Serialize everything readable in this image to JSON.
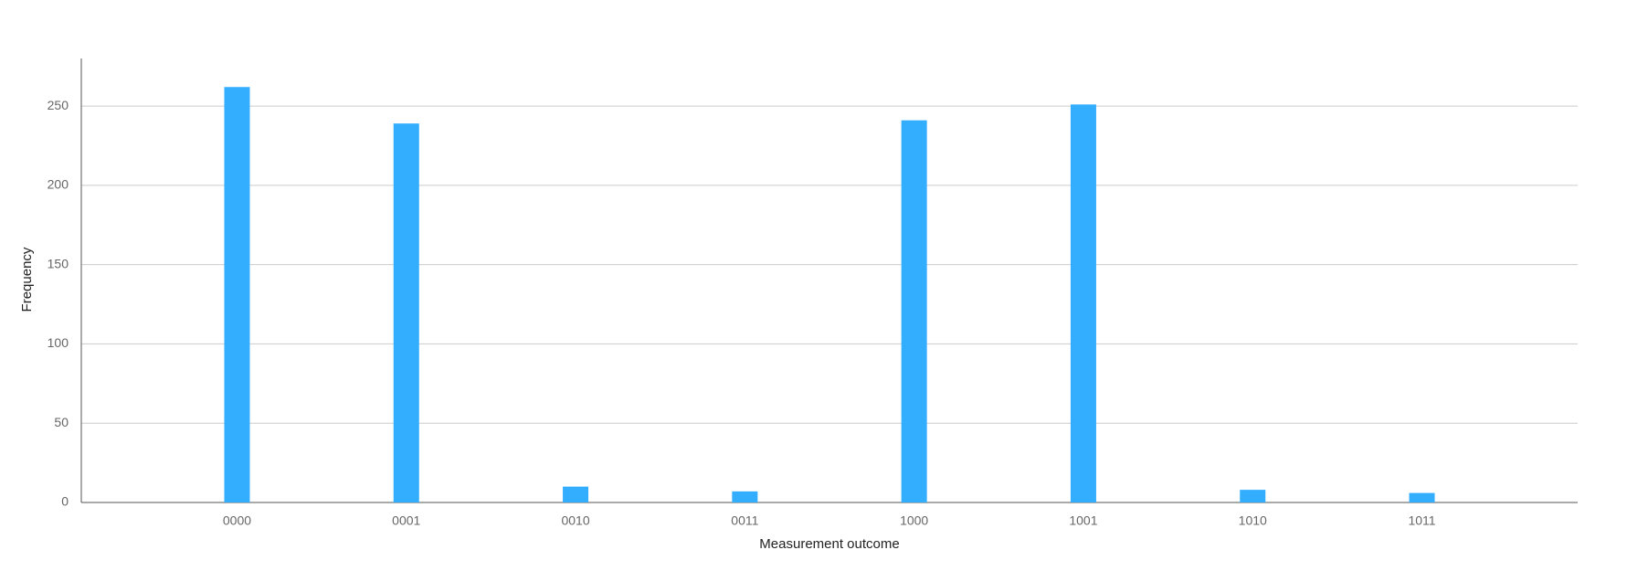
{
  "chart_data": {
    "type": "bar",
    "x_label": "Measurement outcome",
    "y_label": "Frequency",
    "categories": [
      "0000",
      "0001",
      "0010",
      "0011",
      "1000",
      "1001",
      "1010",
      "1011"
    ],
    "values": [
      262,
      239,
      10,
      7,
      241,
      251,
      8,
      6
    ],
    "color": "#33aeff",
    "ylim": [
      0,
      280
    ],
    "yticks": [
      0,
      50,
      100,
      150,
      200,
      250
    ],
    "grid": true
  }
}
